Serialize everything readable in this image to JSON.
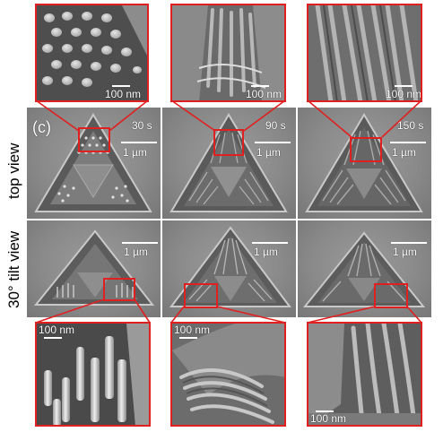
{
  "figure": {
    "panel_label": "(c)",
    "row_labels": {
      "top": "top view",
      "tilt": "30° tilt view"
    },
    "time_labels": [
      "30 s",
      "90 s",
      "150 s"
    ],
    "scale_bar_main": "1 µm",
    "scale_bar_zoom": "100 nm",
    "accent_color": "#e02020"
  }
}
